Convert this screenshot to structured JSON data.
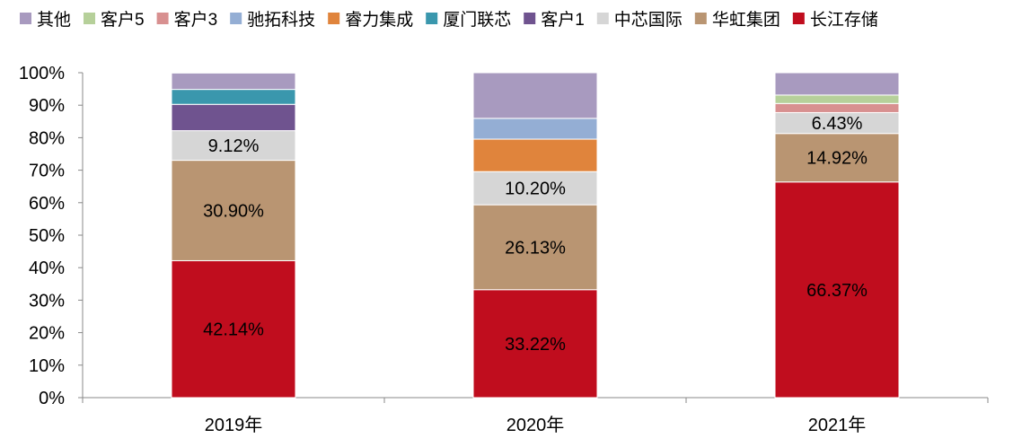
{
  "chart_data": {
    "type": "bar",
    "stacked": true,
    "percent": true,
    "categories": [
      "2019年",
      "2020年",
      "2021年"
    ],
    "ylim": [
      0,
      100
    ],
    "yticks": [
      "0%",
      "10%",
      "20%",
      "30%",
      "40%",
      "50%",
      "60%",
      "70%",
      "80%",
      "90%",
      "100%"
    ],
    "legend_position": "top",
    "legend_order": [
      "其他",
      "客户5",
      "客户3",
      "驰拓科技",
      "睿力集成",
      "厦门联芯",
      "客户1",
      "中芯国际",
      "华虹集团",
      "长江存储"
    ],
    "series": [
      {
        "name": "长江存储",
        "color": "#c00d1e",
        "values": [
          42.14,
          33.22,
          66.37
        ],
        "labels": [
          "42.14%",
          "33.22%",
          "66.37%"
        ]
      },
      {
        "name": "华虹集团",
        "color": "#b99572",
        "values": [
          30.9,
          26.13,
          14.92
        ],
        "labels": [
          "30.90%",
          "26.13%",
          "14.92%"
        ]
      },
      {
        "name": "中芯国际",
        "color": "#d6d6d6",
        "values": [
          9.12,
          10.2,
          6.43
        ],
        "labels": [
          "9.12%",
          "10.20%",
          "6.43%"
        ]
      },
      {
        "name": "客户1",
        "color": "#6f538f",
        "values": [
          8.1,
          0,
          0
        ]
      },
      {
        "name": "厦门联芯",
        "color": "#3a97ad",
        "values": [
          4.6,
          0,
          0
        ]
      },
      {
        "name": "睿力集成",
        "color": "#e0843c",
        "values": [
          0,
          10.0,
          0
        ]
      },
      {
        "name": "驰拓科技",
        "color": "#94aed4",
        "values": [
          0,
          6.4,
          0
        ]
      },
      {
        "name": "客户3",
        "color": "#d89090",
        "values": [
          0,
          0,
          2.8
        ]
      },
      {
        "name": "客户5",
        "color": "#b6d09a",
        "values": [
          0,
          0,
          2.6
        ]
      },
      {
        "name": "其他",
        "color": "#a89abf",
        "values": [
          5.04,
          14.05,
          6.88
        ]
      }
    ]
  }
}
